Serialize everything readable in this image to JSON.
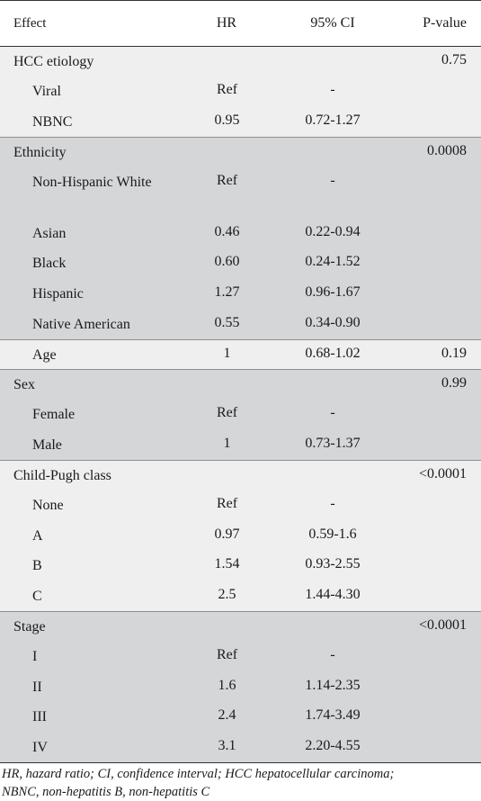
{
  "headers": {
    "effect": "Effect",
    "hr": "HR",
    "ci": "95% CI",
    "p": "P-value"
  },
  "rows": [
    {
      "label": "HCC etiology",
      "hr": "",
      "ci": "",
      "p": "0.75"
    },
    {
      "label": "Viral",
      "hr": "Ref",
      "ci": "-",
      "p": ""
    },
    {
      "label": "NBNC",
      "hr": "0.95",
      "ci": "0.72-1.27",
      "p": ""
    },
    {
      "label": "Ethnicity",
      "hr": "",
      "ci": "",
      "p": "0.0008"
    },
    {
      "label": "Non-Hispanic White",
      "hr": "Ref",
      "ci": "-",
      "p": ""
    },
    {
      "label": "Asian",
      "hr": "0.46",
      "ci": "0.22-0.94",
      "p": ""
    },
    {
      "label": "Black",
      "hr": "0.60",
      "ci": "0.24-1.52",
      "p": ""
    },
    {
      "label": "Hispanic",
      "hr": "1.27",
      "ci": "0.96-1.67",
      "p": ""
    },
    {
      "label": "Native American",
      "hr": "0.55",
      "ci": "0.34-0.90",
      "p": ""
    },
    {
      "label": "Age",
      "hr": "1",
      "ci": "0.68-1.02",
      "p": "0.19"
    },
    {
      "label": "Sex",
      "hr": "",
      "ci": "",
      "p": "0.99"
    },
    {
      "label": "Female",
      "hr": "Ref",
      "ci": "-",
      "p": ""
    },
    {
      "label": "Male",
      "hr": "1",
      "ci": "0.73-1.37",
      "p": ""
    },
    {
      "label": "Child-Pugh class",
      "hr": "",
      "ci": "",
      "p": "<0.0001"
    },
    {
      "label": "None",
      "hr": "Ref",
      "ci": "-",
      "p": ""
    },
    {
      "label": "A",
      "hr": "0.97",
      "ci": "0.59-1.6",
      "p": ""
    },
    {
      "label": "B",
      "hr": "1.54",
      "ci": "0.93-2.55",
      "p": ""
    },
    {
      "label": "C",
      "hr": "2.5",
      "ci": "1.44-4.30",
      "p": ""
    },
    {
      "label": "Stage",
      "hr": "",
      "ci": "",
      "p": "<0.0001"
    },
    {
      "label": "I",
      "hr": "Ref",
      "ci": "-",
      "p": ""
    },
    {
      "label": "II",
      "hr": "1.6",
      "ci": "1.14-2.35",
      "p": ""
    },
    {
      "label": "III",
      "hr": "2.4",
      "ci": "1.74-3.49",
      "p": ""
    },
    {
      "label": "IV",
      "hr": "3.1",
      "ci": "2.20-4.55",
      "p": ""
    }
  ],
  "footnote": {
    "line1": "HR, hazard ratio; CI, confidence interval; HCC hepatocellular carcinoma;",
    "line2": "NBNC, non-hepatitis B, non-hepatitis C"
  }
}
